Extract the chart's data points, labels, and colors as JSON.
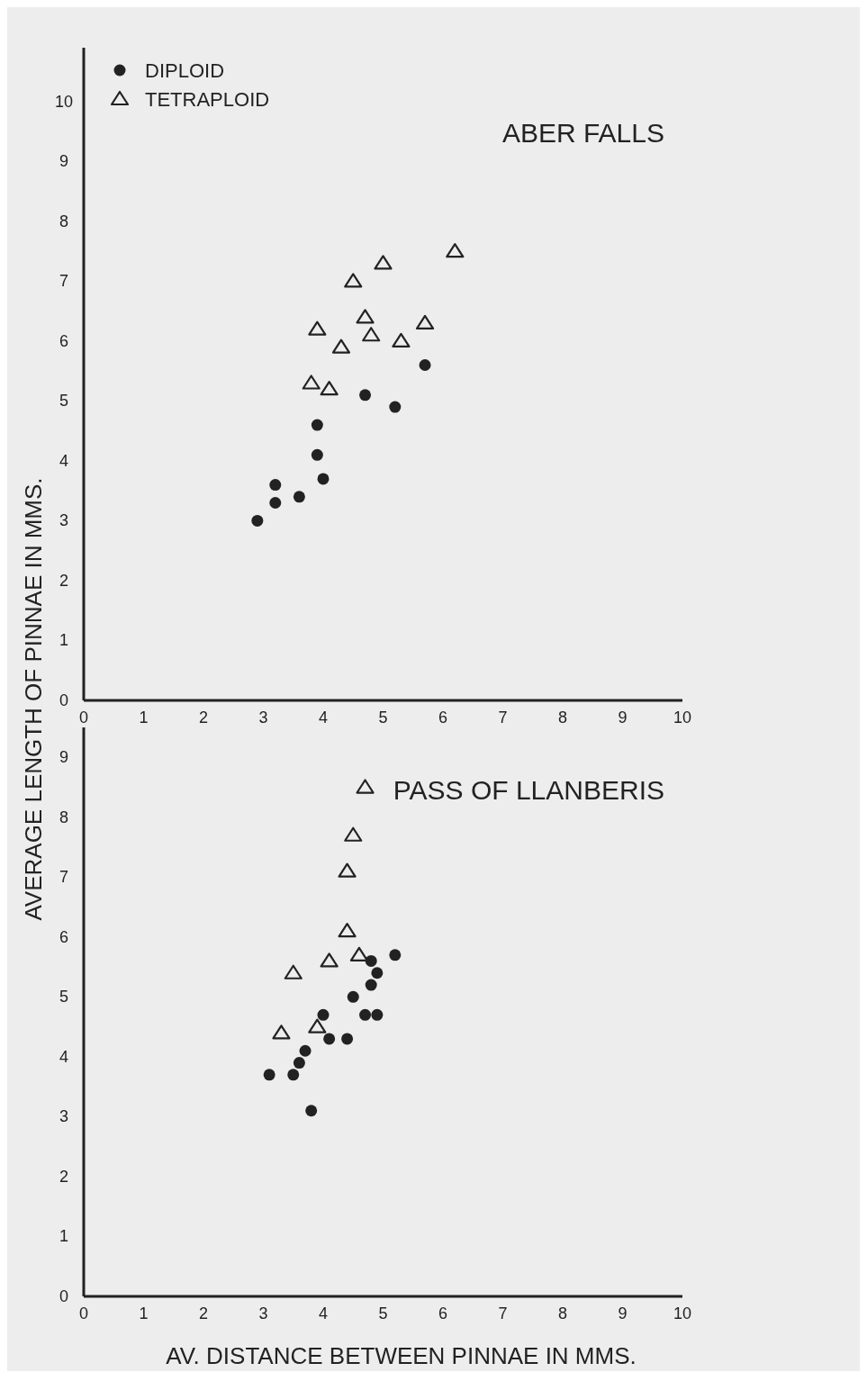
{
  "chart_data": [
    {
      "type": "scatter",
      "title": "ABER FALLS",
      "ylabel": "AVERAGE LENGTH OF PINNAE IN MMS.",
      "xlim": [
        0,
        10
      ],
      "ylim": [
        0,
        10.9
      ],
      "xticks": [
        0,
        1,
        2,
        3,
        4,
        5,
        6,
        7,
        8,
        9,
        10
      ],
      "yticks": [
        0,
        1,
        2,
        3,
        4,
        5,
        6,
        7,
        8,
        9,
        10
      ],
      "legend": "top left",
      "grid": false,
      "series": [
        {
          "name": "DIPLOID",
          "color": "#222222",
          "marker": "circle",
          "x": [
            2.9,
            3.2,
            3.2,
            3.6,
            4.0,
            3.9,
            3.9,
            4.7,
            5.2,
            5.7
          ],
          "values": [
            3.0,
            3.3,
            3.6,
            3.4,
            3.7,
            4.1,
            4.6,
            5.1,
            4.9,
            5.6
          ]
        },
        {
          "name": "TETRAPLOID",
          "color": "#222222",
          "marker": "triangle",
          "x": [
            6.2,
            5.0,
            4.5,
            4.7,
            3.9,
            5.7,
            4.8,
            4.3,
            5.3,
            3.8,
            4.1
          ],
          "values": [
            7.5,
            7.3,
            7.0,
            6.4,
            6.2,
            6.3,
            6.1,
            5.9,
            6.0,
            5.3,
            5.2
          ]
        }
      ]
    },
    {
      "type": "scatter",
      "title": "PASS OF LLANBERIS",
      "xlabel": "AV. DISTANCE BETWEEN PINNAE IN MMS.",
      "xlim": [
        0,
        10
      ],
      "ylim": [
        0,
        9.5
      ],
      "xticks": [
        0,
        1,
        2,
        3,
        4,
        5,
        6,
        7,
        8,
        9,
        10
      ],
      "yticks": [
        0,
        1,
        2,
        3,
        4,
        5,
        6,
        7,
        8,
        9
      ],
      "grid": false,
      "series": [
        {
          "color": "#222222",
          "marker": "circle",
          "x": [
            3.1,
            3.5,
            3.6,
            3.7,
            3.8,
            4.0,
            4.1,
            4.4,
            4.5,
            4.7,
            4.9,
            4.8,
            4.9,
            4.8,
            5.2
          ],
          "values": [
            3.7,
            3.7,
            3.9,
            4.1,
            3.1,
            4.7,
            4.3,
            4.3,
            5.0,
            4.7,
            4.7,
            5.2,
            5.4,
            5.6,
            5.7
          ]
        },
        {
          "color": "#222222",
          "marker": "triangle",
          "x": [
            4.7,
            4.5,
            4.4,
            4.4,
            4.1,
            3.5,
            4.6,
            3.3,
            3.9
          ],
          "values": [
            8.5,
            7.7,
            7.1,
            6.1,
            5.6,
            5.4,
            5.7,
            4.4,
            4.5
          ]
        }
      ]
    }
  ]
}
